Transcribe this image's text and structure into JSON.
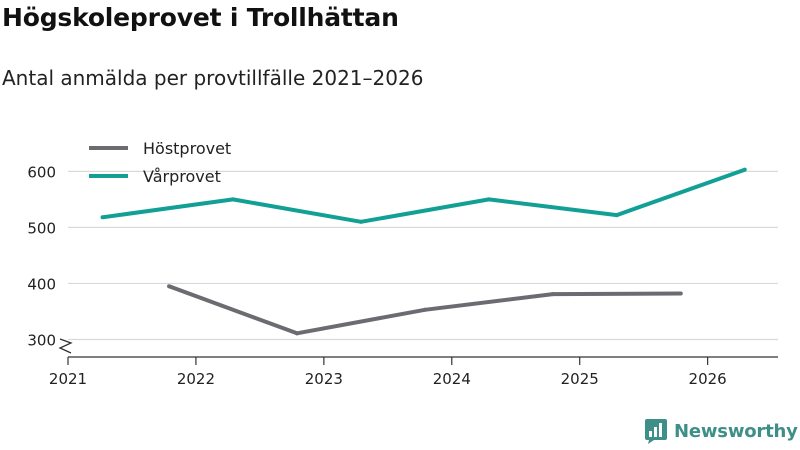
{
  "chart_data": {
    "type": "line",
    "title": "Högskoleprovet i Trollhättan",
    "subtitle": "Antal anmälda per provtillfälle 2021–2026",
    "xlabel": "",
    "ylabel": "",
    "x_ticks": [
      "2021",
      "2022",
      "2023",
      "2024",
      "2025",
      "2026"
    ],
    "y_ticks": [
      "300",
      "400",
      "500",
      "600"
    ],
    "ylim": [
      280,
      620
    ],
    "y_axis_break": true,
    "grid": "horizontal",
    "legend_position": "top-left",
    "series": [
      {
        "name": "Höstprovet",
        "color": "#6b6b72",
        "x": [
          2021.79,
          2022.79,
          2023.79,
          2024.79,
          2025.79
        ],
        "y": [
          395,
          311,
          353,
          381,
          382
        ]
      },
      {
        "name": "Vårprovet",
        "color": "#12a096",
        "x": [
          2021.27,
          2022.29,
          2023.29,
          2024.29,
          2025.29,
          2026.29
        ],
        "y": [
          518,
          550,
          510,
          550,
          522,
          603
        ]
      }
    ]
  },
  "branding": {
    "logo_text": "Newsworthy",
    "logo_icon": "bar-chart-speech-bubble-icon",
    "color": "#3d8f88"
  }
}
